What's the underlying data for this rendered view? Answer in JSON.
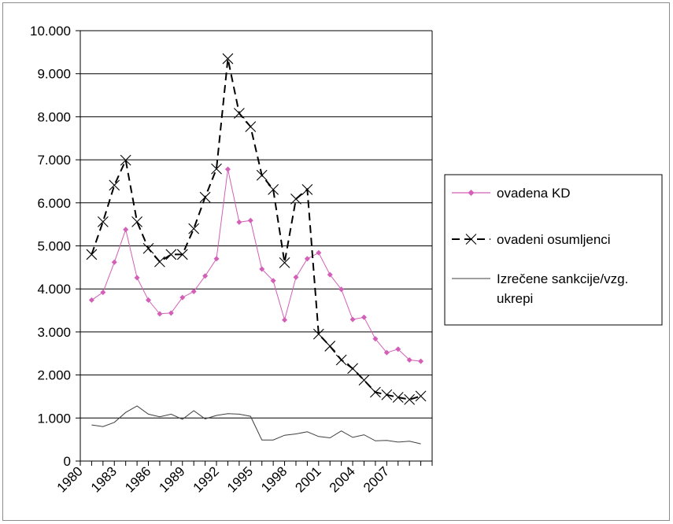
{
  "chart_data": {
    "type": "line",
    "x": [
      1981,
      1982,
      1983,
      1984,
      1985,
      1986,
      1987,
      1988,
      1989,
      1990,
      1991,
      1992,
      1993,
      1994,
      1995,
      1996,
      1997,
      1998,
      1999,
      2000,
      2001,
      2002,
      2003,
      2004,
      2005,
      2006,
      2007,
      2008,
      2009,
      2010,
      2011
    ],
    "x_tick_labels": [
      "1980",
      "1983",
      "1986",
      "1989",
      "1992",
      "1995",
      "1998",
      "2001",
      "2004",
      "2007"
    ],
    "y_tick_labels": [
      "0",
      "1.000",
      "2.000",
      "3.000",
      "4.000",
      "5.000",
      "6.000",
      "7.000",
      "8.000",
      "9.000",
      "10.000"
    ],
    "ylim": [
      0,
      10000
    ],
    "grid": "horizontal",
    "legend_position": "right",
    "series": [
      {
        "name": "ovadena KD",
        "color": "#d35fb7",
        "style": "line-diamond",
        "values": [
          3740,
          3920,
          4620,
          5380,
          4260,
          3740,
          3420,
          3440,
          3800,
          3940,
          4300,
          4700,
          6780,
          5550,
          5590,
          4460,
          4190,
          3280,
          4270,
          4700,
          4840,
          4330,
          3990,
          3290,
          3340,
          2840,
          2520,
          2600,
          2350,
          2320,
          null
        ]
      },
      {
        "name": "ovadeni osumljenci",
        "color": "#000000",
        "style": "dashed-x",
        "values": [
          4800,
          5560,
          6410,
          6990,
          5560,
          4940,
          4630,
          4800,
          4800,
          5400,
          6130,
          6790,
          9350,
          8080,
          7770,
          6640,
          6310,
          4610,
          6090,
          6310,
          2950,
          2670,
          2350,
          2150,
          1880,
          1600,
          1540,
          1480,
          1430,
          1510,
          null
        ]
      },
      {
        "name": "Izrečene sankcije/vzg. ukrepi",
        "color": "#3f3f3f",
        "style": "line",
        "values": [
          840,
          800,
          900,
          1130,
          1280,
          1090,
          1030,
          1090,
          970,
          1170,
          980,
          1060,
          1100,
          1090,
          1040,
          490,
          490,
          600,
          630,
          680,
          570,
          540,
          700,
          550,
          610,
          470,
          480,
          440,
          460,
          400,
          null
        ]
      }
    ],
    "legend": {
      "entry1": "ovadena KD",
      "entry2": "ovadeni osumljenci",
      "entry3_line1": "Izrečene sankcije/vzg.",
      "entry3_line2": "ukrepi"
    }
  }
}
